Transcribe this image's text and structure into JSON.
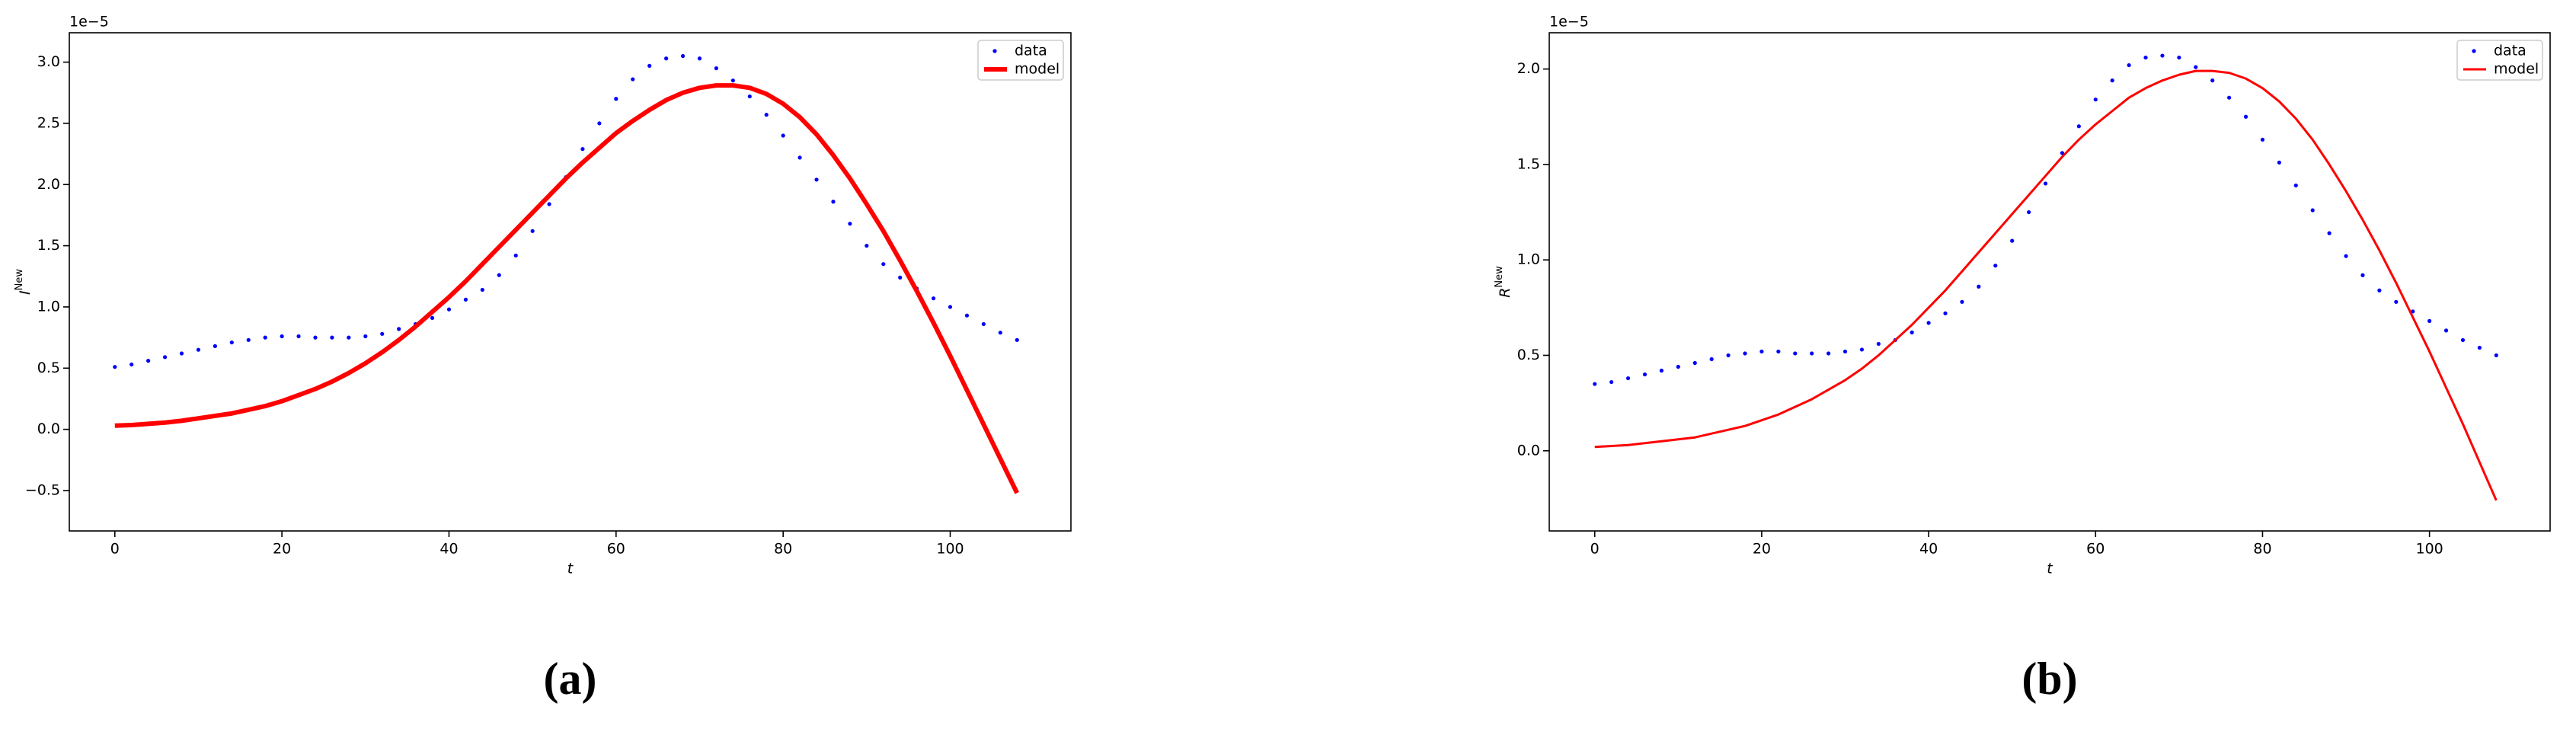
{
  "chart_data": [
    {
      "type": "line",
      "caption": "(a)",
      "x_label": "t",
      "y_label": "I",
      "y_label_sup": "New",
      "y_offset_label": "1e−5",
      "legend": "upper right",
      "x": [
        0,
        2,
        4,
        6,
        8,
        10,
        12,
        14,
        16,
        18,
        20,
        22,
        24,
        26,
        28,
        30,
        32,
        34,
        36,
        38,
        40,
        42,
        44,
        46,
        48,
        50,
        52,
        54,
        56,
        58,
        60,
        62,
        64,
        66,
        68,
        70,
        72,
        74,
        76,
        78,
        80,
        82,
        84,
        86,
        88,
        90,
        92,
        94,
        96,
        98,
        100,
        102,
        104,
        106,
        108
      ],
      "series": [
        {
          "name": "data",
          "color": "#0000ff",
          "marker": "dot",
          "values": [
            0.51,
            0.53,
            0.56,
            0.59,
            0.62,
            0.65,
            0.68,
            0.71,
            0.73,
            0.75,
            0.76,
            0.76,
            0.75,
            0.75,
            0.75,
            0.76,
            0.78,
            0.82,
            0.86,
            0.91,
            0.98,
            1.06,
            1.14,
            1.26,
            1.42,
            1.62,
            1.84,
            2.06,
            2.29,
            2.5,
            2.7,
            2.86,
            2.97,
            3.03,
            3.05,
            3.03,
            2.95,
            2.85,
            2.72,
            2.57,
            2.4,
            2.22,
            2.04,
            1.86,
            1.68,
            1.5,
            1.35,
            1.24,
            1.15,
            1.07,
            1.0,
            0.93,
            0.86,
            0.79,
            0.73
          ]
        },
        {
          "name": "model",
          "color": "#ff0000",
          "line_width": 6,
          "values": [
            0.03,
            0.035,
            0.045,
            0.055,
            0.07,
            0.09,
            0.11,
            0.13,
            0.16,
            0.19,
            0.23,
            0.28,
            0.33,
            0.39,
            0.46,
            0.54,
            0.63,
            0.73,
            0.84,
            0.96,
            1.08,
            1.21,
            1.35,
            1.49,
            1.63,
            1.77,
            1.91,
            2.05,
            2.18,
            2.3,
            2.42,
            2.52,
            2.61,
            2.69,
            2.75,
            2.79,
            2.81,
            2.81,
            2.79,
            2.74,
            2.66,
            2.55,
            2.41,
            2.24,
            2.05,
            1.84,
            1.62,
            1.38,
            1.13,
            0.87,
            0.6,
            0.32,
            0.04,
            -0.24,
            -0.52
          ]
        }
      ],
      "xlim": [
        -5.45,
        114.45
      ],
      "xticks": [
        0,
        20,
        40,
        60,
        80,
        100
      ],
      "ylim": [
        -0.83,
        3.24
      ],
      "yticks": [
        {
          "value": -0.5,
          "label": "−0.5"
        },
        {
          "value": 0,
          "label": "0.0"
        },
        {
          "value": 0.5,
          "label": "0.5"
        },
        {
          "value": 1,
          "label": "1.0"
        },
        {
          "value": 1.5,
          "label": "1.5"
        },
        {
          "value": 2,
          "label": "2.0"
        },
        {
          "value": 2.5,
          "label": "2.5"
        },
        {
          "value": 3,
          "label": "3.0"
        }
      ]
    },
    {
      "type": "line",
      "caption": "(b)",
      "x_label": "t",
      "y_label": "R",
      "y_label_sup": "New",
      "y_offset_label": "1e−5",
      "legend": "upper right",
      "x": [
        0,
        2,
        4,
        6,
        8,
        10,
        12,
        14,
        16,
        18,
        20,
        22,
        24,
        26,
        28,
        30,
        32,
        34,
        36,
        38,
        40,
        42,
        44,
        46,
        48,
        50,
        52,
        54,
        56,
        58,
        60,
        62,
        64,
        66,
        68,
        70,
        72,
        74,
        76,
        78,
        80,
        82,
        84,
        86,
        88,
        90,
        92,
        94,
        96,
        98,
        100,
        102,
        104,
        106,
        108
      ],
      "series": [
        {
          "name": "data",
          "color": "#0000ff",
          "marker": "dot",
          "values": [
            0.35,
            0.36,
            0.38,
            0.4,
            0.42,
            0.44,
            0.46,
            0.48,
            0.5,
            0.51,
            0.52,
            0.52,
            0.51,
            0.51,
            0.51,
            0.52,
            0.53,
            0.56,
            0.58,
            0.62,
            0.67,
            0.72,
            0.78,
            0.86,
            0.97,
            1.1,
            1.25,
            1.4,
            1.56,
            1.7,
            1.84,
            1.94,
            2.02,
            2.06,
            2.07,
            2.06,
            2.01,
            1.94,
            1.85,
            1.75,
            1.63,
            1.51,
            1.39,
            1.26,
            1.14,
            1.02,
            0.92,
            0.84,
            0.78,
            0.73,
            0.68,
            0.63,
            0.58,
            0.54,
            0.5
          ]
        },
        {
          "name": "model",
          "color": "#ff0000",
          "line_width": 3,
          "values": [
            0.02,
            0.025,
            0.03,
            0.04,
            0.05,
            0.06,
            0.07,
            0.09,
            0.11,
            0.13,
            0.16,
            0.19,
            0.23,
            0.27,
            0.32,
            0.37,
            0.43,
            0.5,
            0.58,
            0.66,
            0.75,
            0.84,
            0.94,
            1.04,
            1.14,
            1.24,
            1.34,
            1.44,
            1.54,
            1.63,
            1.71,
            1.78,
            1.85,
            1.9,
            1.94,
            1.97,
            1.99,
            1.99,
            1.98,
            1.95,
            1.9,
            1.83,
            1.74,
            1.63,
            1.5,
            1.36,
            1.21,
            1.05,
            0.88,
            0.7,
            0.52,
            0.33,
            0.14,
            -0.06,
            -0.26
          ]
        }
      ],
      "xlim": [
        -5.45,
        114.45
      ],
      "xticks": [
        0,
        20,
        40,
        60,
        80,
        100
      ],
      "ylim": [
        -0.42,
        2.19
      ],
      "yticks": [
        {
          "value": 0,
          "label": "0.0"
        },
        {
          "value": 0.5,
          "label": "0.5"
        },
        {
          "value": 1,
          "label": "1.0"
        },
        {
          "value": 1.5,
          "label": "1.5"
        },
        {
          "value": 2,
          "label": "2.0"
        }
      ]
    }
  ]
}
